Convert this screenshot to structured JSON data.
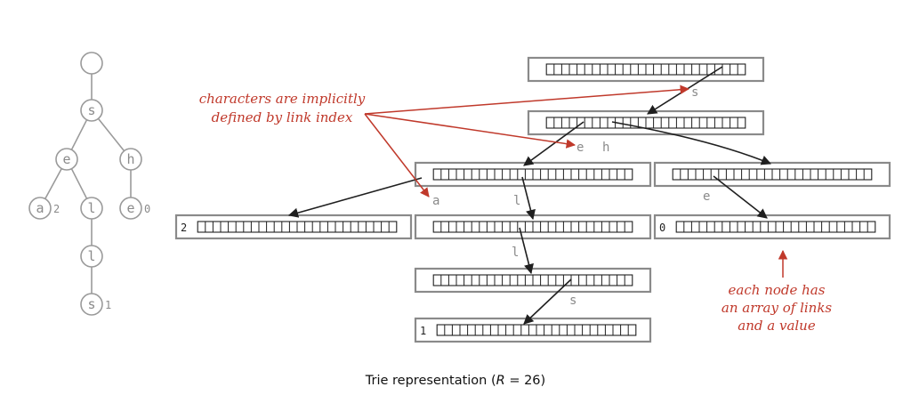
{
  "caption": {
    "prefix": "Trie representation (",
    "var": "R",
    "suffix": " = 26)"
  },
  "tree": {
    "nodes": [
      {
        "id": "root",
        "char": "",
        "value": ""
      },
      {
        "id": "s",
        "char": "s",
        "value": ""
      },
      {
        "id": "se",
        "char": "e",
        "value": ""
      },
      {
        "id": "sh",
        "char": "h",
        "value": ""
      },
      {
        "id": "sea",
        "char": "a",
        "value": "2"
      },
      {
        "id": "sel",
        "char": "l",
        "value": ""
      },
      {
        "id": "she",
        "char": "e",
        "value": "0"
      },
      {
        "id": "sell",
        "char": "l",
        "value": ""
      },
      {
        "id": "sells",
        "char": "s",
        "value": "1"
      }
    ],
    "edges": [
      [
        "root",
        "s"
      ],
      [
        "s",
        "se"
      ],
      [
        "s",
        "sh"
      ],
      [
        "se",
        "sea"
      ],
      [
        "se",
        "sel"
      ],
      [
        "sh",
        "she"
      ],
      [
        "sel",
        "sell"
      ],
      [
        "sell",
        "sells"
      ]
    ]
  },
  "trie": {
    "links_per_node": 26,
    "nodes": [
      {
        "id": "n-root",
        "value": ""
      },
      {
        "id": "n-s",
        "value": ""
      },
      {
        "id": "n-se",
        "value": ""
      },
      {
        "id": "n-sh",
        "value": ""
      },
      {
        "id": "n-sea",
        "value": "2"
      },
      {
        "id": "n-sel",
        "value": ""
      },
      {
        "id": "n-she",
        "value": "0"
      },
      {
        "id": "n-sell",
        "value": ""
      },
      {
        "id": "n-sells",
        "value": "1"
      }
    ],
    "link_labels": [
      {
        "id": "lbl-s",
        "text": "s"
      },
      {
        "id": "lbl-e",
        "text": "e"
      },
      {
        "id": "lbl-h",
        "text": "h"
      },
      {
        "id": "lbl-a",
        "text": "a"
      },
      {
        "id": "lbl-l1",
        "text": "l"
      },
      {
        "id": "lbl-e2",
        "text": "e"
      },
      {
        "id": "lbl-l2",
        "text": "l"
      },
      {
        "id": "lbl-s2",
        "text": "s"
      }
    ]
  },
  "annotations": {
    "link_index": [
      "characters are implicitly",
      "defined by link index"
    ],
    "node_array": [
      "each node has",
      "an array of links",
      "and a value"
    ]
  },
  "colors": {
    "annotation": "#c0392b",
    "tree": "#9a9a9a",
    "link": "#1f1f1f"
  }
}
